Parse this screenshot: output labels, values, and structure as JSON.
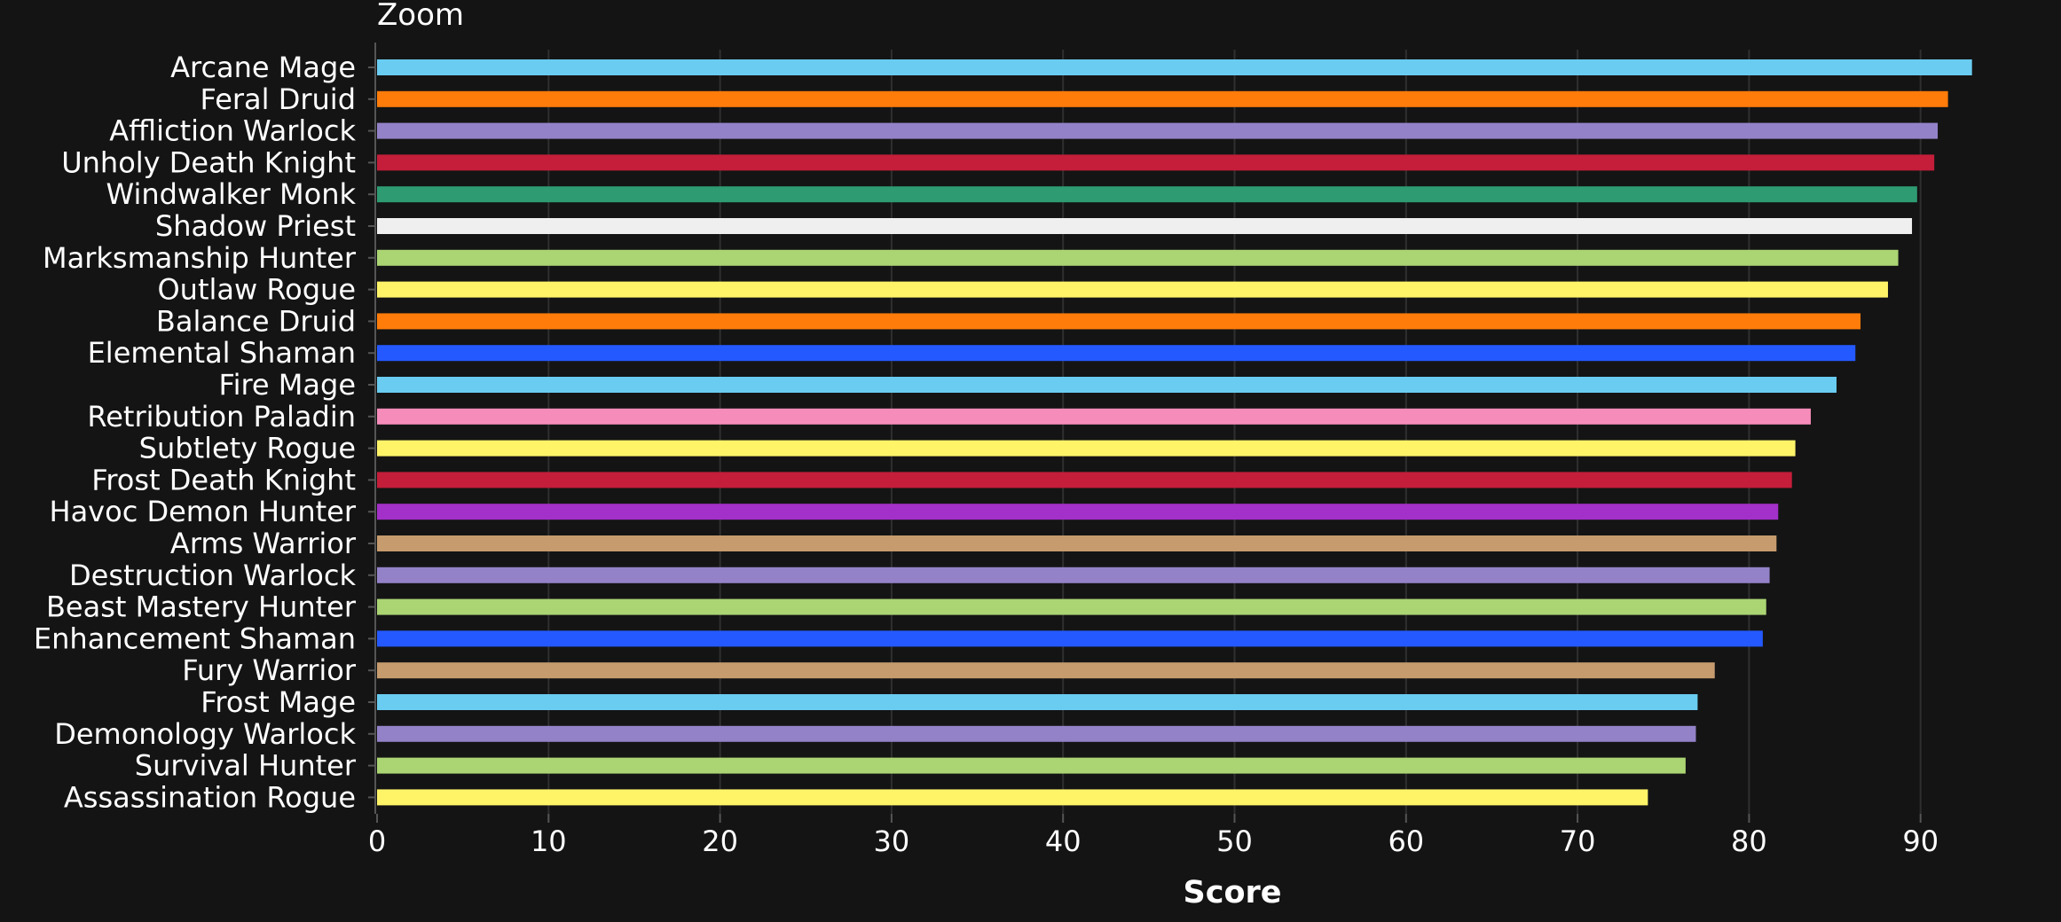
{
  "zoom_label": "Zoom",
  "chart_data": {
    "type": "bar",
    "orientation": "horizontal",
    "xlabel": "Score",
    "ylabel": "",
    "xlim": [
      0,
      95
    ],
    "xticks": [
      0,
      10,
      20,
      30,
      40,
      50,
      60,
      70,
      80,
      90
    ],
    "grid": true,
    "legend": "none",
    "background_color": "#141414",
    "categories": [
      "Arcane Mage",
      "Feral Druid",
      "Affliction Warlock",
      "Unholy Death Knight",
      "Windwalker Monk",
      "Shadow Priest",
      "Marksmanship Hunter",
      "Outlaw Rogue",
      "Balance Druid",
      "Elemental Shaman",
      "Fire Mage",
      "Retribution Paladin",
      "Subtlety Rogue",
      "Frost Death Knight",
      "Havoc Demon Hunter",
      "Arms Warrior",
      "Destruction Warlock",
      "Beast Mastery Hunter",
      "Enhancement Shaman",
      "Fury Warrior",
      "Frost Mage",
      "Demonology Warlock",
      "Survival Hunter",
      "Assassination Rogue"
    ],
    "values": [
      93.0,
      91.6,
      91.0,
      90.8,
      89.8,
      89.5,
      88.7,
      88.1,
      86.5,
      86.2,
      85.1,
      83.6,
      82.7,
      82.5,
      81.7,
      81.6,
      81.2,
      81.0,
      80.8,
      78.0,
      77.0,
      76.9,
      76.3,
      74.1
    ],
    "colors": [
      "#69ccf0",
      "#ff7c0a",
      "#9482c9",
      "#c41e3a",
      "#2e9b72",
      "#efefef",
      "#abd473",
      "#fff468",
      "#ff7c0a",
      "#2459ff",
      "#69ccf0",
      "#f58cba",
      "#fff468",
      "#c41e3a",
      "#a330c9",
      "#c69b6d",
      "#9482c9",
      "#abd473",
      "#2459ff",
      "#c69b6d",
      "#69ccf0",
      "#9482c9",
      "#abd473",
      "#fff468"
    ]
  }
}
